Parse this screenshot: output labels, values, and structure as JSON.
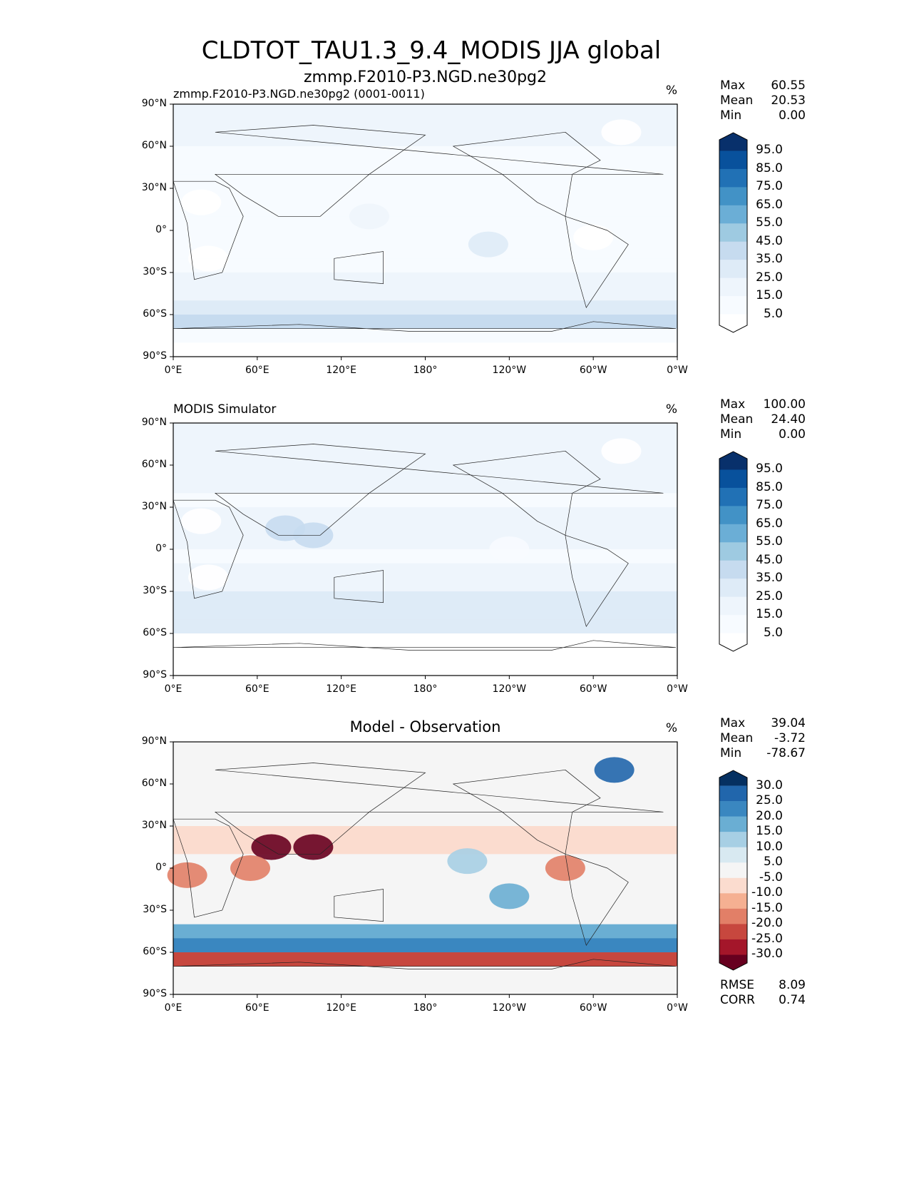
{
  "chart_data": {
    "type": "heatmap",
    "title": "CLDTOT_TAU1.3_9.4_MODIS JJA global",
    "xticks": [
      "0°E",
      "60°E",
      "120°E",
      "180°",
      "120°W",
      "60°W",
      "0°W"
    ],
    "yticks": [
      "90°N",
      "60°N",
      "30°N",
      "0°",
      "30°S",
      "60°S",
      "90°S"
    ],
    "panels": [
      {
        "left_title": "zmmp.F2010-P3.NGD.ne30pg2 (0001-0011)",
        "center_title": "zmmp.F2010-P3.NGD.ne30pg2",
        "units": "%",
        "stats": {
          "max": "60.55",
          "mean": "20.53",
          "min": "0.00"
        },
        "cbar": {
          "type": "seq",
          "labels": [
            "95.0",
            "85.0",
            "75.0",
            "65.0",
            "55.0",
            "45.0",
            "35.0",
            "25.0",
            "15.0",
            "5.0"
          ]
        },
        "zonal_bands_85N_to_85S": [
          25,
          25,
          22,
          20,
          15,
          12,
          15,
          20,
          20,
          18,
          18,
          20,
          22,
          30,
          40,
          45,
          20,
          5
        ],
        "features": [
          [
            140,
            10,
            30
          ],
          [
            -135,
            -10,
            35
          ],
          [
            20,
            20,
            5
          ],
          [
            25,
            -20,
            5
          ],
          [
            -60,
            -5,
            10
          ],
          [
            -40,
            70,
            10
          ]
        ]
      },
      {
        "left_title": "MODIS Simulator",
        "center_title": "",
        "units": "%",
        "stats": {
          "max": "100.00",
          "mean": "24.40",
          "min": "0.00"
        },
        "cbar": {
          "type": "seq",
          "labels": [
            "95.0",
            "85.0",
            "75.0",
            "65.0",
            "55.0",
            "45.0",
            "35.0",
            "25.0",
            "15.0",
            "5.0"
          ]
        },
        "zonal_bands_85N_to_85S": [
          30,
          28,
          25,
          28,
          25,
          20,
          30,
          30,
          25,
          20,
          22,
          28,
          35,
          40,
          40,
          null,
          null,
          null
        ],
        "features": [
          [
            80,
            15,
            50
          ],
          [
            100,
            10,
            45
          ],
          [
            20,
            20,
            5
          ],
          [
            25,
            -20,
            5
          ],
          [
            -120,
            0,
            12
          ],
          [
            -40,
            70,
            10
          ]
        ]
      },
      {
        "left_title": "",
        "center_title": "Model - Observation",
        "units": "%",
        "stats": {
          "max": "39.04",
          "mean": "-3.72",
          "min": "-78.67",
          "rmse": "8.09",
          "corr": "0.74"
        },
        "cbar": {
          "type": "div",
          "labels": [
            "30.0",
            "25.0",
            "20.0",
            "15.0",
            "10.0",
            "5.0",
            "-5.0",
            "-10.0",
            "-15.0",
            "-20.0",
            "-25.0",
            "-30.0"
          ]
        },
        "zonal_bands_85N_to_85S": [
          -5,
          -3,
          -3,
          -5,
          -3,
          -3,
          -8,
          -8,
          -5,
          -3,
          -3,
          -3,
          -5,
          18,
          20,
          -25,
          0,
          0
        ],
        "features": [
          [
            70,
            15,
            -40
          ],
          [
            100,
            15,
            -35
          ],
          [
            55,
            0,
            -20
          ],
          [
            10,
            -5,
            -20
          ],
          [
            -120,
            -20,
            15
          ],
          [
            -45,
            70,
            25
          ],
          [
            -80,
            0,
            -20
          ],
          [
            -150,
            5,
            10
          ]
        ]
      }
    ],
    "colors": {
      "seq": [
        "#08306b",
        "#08519c",
        "#2171b5",
        "#4292c6",
        "#6baed6",
        "#9ecae1",
        "#c6dbef",
        "#deebf7",
        "#eef5fc",
        "#f7fbff",
        "#ffffff"
      ],
      "div": [
        "#053061",
        "#2166ac",
        "#3a87c0",
        "#6aaed3",
        "#a7cfe4",
        "#d8e9f1",
        "#f5f5f5",
        "#fbdccf",
        "#f5b092",
        "#e27f67",
        "#c7473e",
        "#a4162a",
        "#67001f"
      ]
    }
  },
  "labels": {
    "max": "Max",
    "mean": "Mean",
    "min": "Min",
    "rmse": "RMSE",
    "corr": "CORR"
  }
}
